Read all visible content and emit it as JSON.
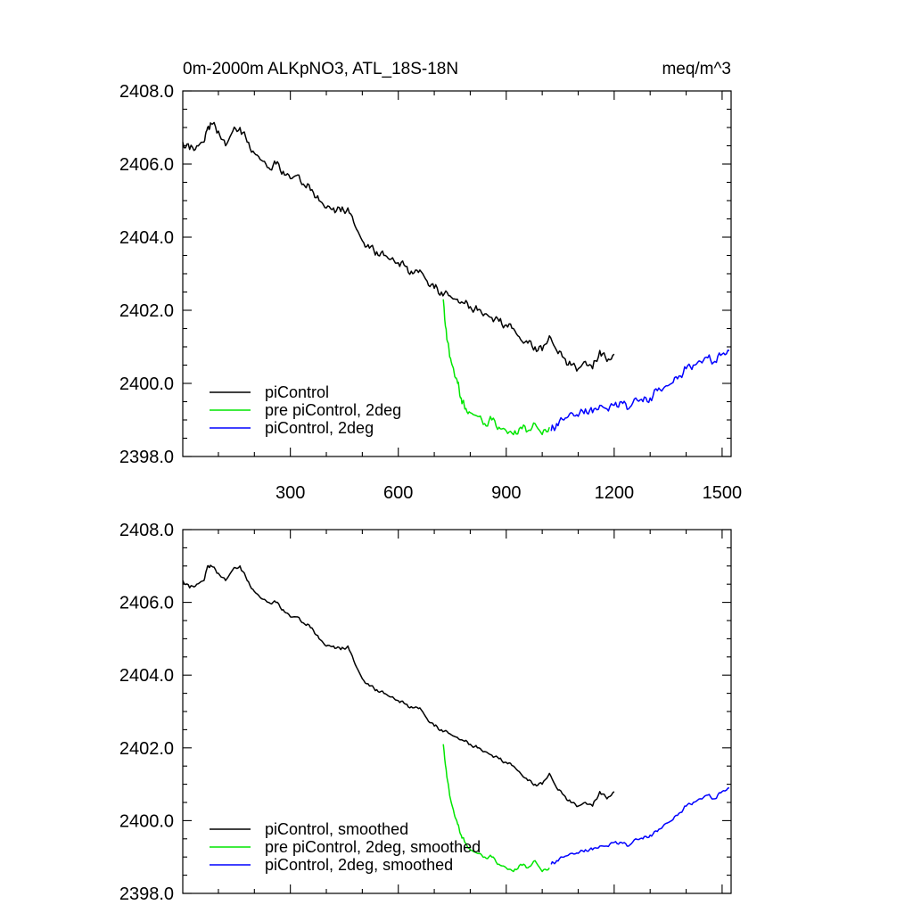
{
  "header": {
    "title": "0m-2000m ALKpNO3, ATL_18S-18N",
    "units": "meq/m^3"
  },
  "colors": {
    "piControl": "#000000",
    "pre_piControl_2deg": "#00e600",
    "piControl_2deg": "#0000ff"
  },
  "chart_data": [
    {
      "type": "line",
      "panel": "top",
      "title": "0m-2000m ALKpNO3, ATL_18S-18N",
      "units_label": "meq/m^3",
      "xlim": [
        1,
        1525
      ],
      "ylim": [
        2398.0,
        2408.0
      ],
      "x_ticks": [
        300,
        600,
        900,
        1200,
        1500
      ],
      "x_tick_labels": [
        "300",
        "600",
        "900",
        "1200",
        "1500"
      ],
      "y_ticks": [
        2398,
        2400,
        2402,
        2404,
        2406,
        2408
      ],
      "y_tick_labels": [
        "2398.0",
        "2400.0",
        "2402.0",
        "2404.0",
        "2406.0",
        "2408.0"
      ],
      "legend": "bottom-left",
      "series": [
        {
          "name": "piControl",
          "color": "#000000",
          "x": [
            1,
            20,
            40,
            60,
            70,
            80,
            100,
            120,
            140,
            160,
            180,
            200,
            220,
            240,
            260,
            280,
            300,
            320,
            340,
            360,
            380,
            400,
            420,
            440,
            460,
            480,
            500,
            520,
            540,
            560,
            580,
            600,
            620,
            640,
            660,
            680,
            700,
            720,
            740,
            760,
            780,
            800,
            820,
            840,
            860,
            880,
            900,
            920,
            940,
            960,
            980,
            1000,
            1020,
            1040,
            1060,
            1080,
            1100,
            1120,
            1140,
            1160,
            1180,
            1200
          ],
          "y": [
            2406.6,
            2406.4,
            2406.5,
            2406.6,
            2407.0,
            2407.1,
            2406.9,
            2406.5,
            2406.9,
            2407.0,
            2406.6,
            2406.3,
            2406.1,
            2405.9,
            2406.0,
            2405.8,
            2405.6,
            2405.7,
            2405.4,
            2405.3,
            2405.0,
            2404.8,
            2404.8,
            2404.7,
            2404.8,
            2404.3,
            2403.9,
            2403.7,
            2403.6,
            2403.5,
            2403.4,
            2403.3,
            2403.2,
            2403.0,
            2403.1,
            2402.8,
            2402.6,
            2402.5,
            2402.4,
            2402.3,
            2402.2,
            2402.1,
            2402.0,
            2401.9,
            2401.8,
            2401.7,
            2401.6,
            2401.5,
            2401.2,
            2401.1,
            2401.0,
            2400.9,
            2401.3,
            2400.9,
            2400.7,
            2400.5,
            2400.4,
            2400.6,
            2400.4,
            2400.9,
            2400.6,
            2400.8
          ]
        },
        {
          "name": "pre piControl, 2deg",
          "color": "#00e600",
          "x": [
            725,
            735,
            745,
            755,
            765,
            775,
            785,
            800,
            820,
            840,
            860,
            880,
            900,
            920,
            940,
            960,
            980,
            1000,
            1020
          ],
          "y": [
            2402.3,
            2401.2,
            2400.7,
            2400.3,
            2400.0,
            2399.6,
            2399.3,
            2399.2,
            2399.1,
            2398.9,
            2399.0,
            2398.8,
            2398.7,
            2398.6,
            2398.8,
            2398.7,
            2398.9,
            2398.6,
            2398.8
          ]
        },
        {
          "name": "piControl, 2deg",
          "color": "#0000ff",
          "x": [
            1025,
            1040,
            1060,
            1080,
            1100,
            1120,
            1140,
            1160,
            1180,
            1200,
            1220,
            1240,
            1260,
            1280,
            1300,
            1320,
            1340,
            1360,
            1380,
            1400,
            1420,
            1440,
            1460,
            1480,
            1500,
            1520
          ],
          "y": [
            2398.7,
            2398.9,
            2399.0,
            2399.2,
            2399.1,
            2399.3,
            2399.2,
            2399.4,
            2399.3,
            2399.4,
            2399.5,
            2399.3,
            2399.6,
            2399.5,
            2399.6,
            2399.8,
            2399.9,
            2400.0,
            2400.2,
            2400.4,
            2400.5,
            2400.6,
            2400.7,
            2400.6,
            2400.8,
            2400.9
          ]
        }
      ]
    },
    {
      "type": "line",
      "panel": "bottom",
      "xlim": [
        1,
        1525
      ],
      "ylim": [
        2398.0,
        2408.0
      ],
      "x_ticks": [
        300,
        600,
        900,
        1200,
        1500
      ],
      "y_ticks": [
        2398,
        2400,
        2402,
        2404,
        2406,
        2408
      ],
      "y_tick_labels": [
        "2398.0",
        "2400.0",
        "2402.0",
        "2404.0",
        "2406.0",
        "2408.0"
      ],
      "legend": "bottom-left",
      "series": [
        {
          "name": "piControl, smoothed",
          "color": "#000000",
          "x": [
            1,
            20,
            40,
            60,
            70,
            80,
            100,
            120,
            140,
            160,
            180,
            200,
            220,
            240,
            260,
            280,
            300,
            320,
            340,
            360,
            380,
            400,
            420,
            440,
            460,
            480,
            500,
            520,
            540,
            560,
            580,
            600,
            620,
            640,
            660,
            680,
            700,
            720,
            740,
            760,
            780,
            800,
            820,
            840,
            860,
            880,
            900,
            920,
            940,
            960,
            980,
            1000,
            1020,
            1040,
            1060,
            1080,
            1100,
            1120,
            1140,
            1160,
            1180,
            1200
          ],
          "y": [
            2406.6,
            2406.4,
            2406.5,
            2406.6,
            2407.0,
            2407.0,
            2406.8,
            2406.6,
            2406.9,
            2407.0,
            2406.6,
            2406.3,
            2406.1,
            2406.0,
            2406.0,
            2405.8,
            2405.6,
            2405.6,
            2405.4,
            2405.3,
            2405.0,
            2404.8,
            2404.8,
            2404.7,
            2404.8,
            2404.3,
            2403.9,
            2403.7,
            2403.6,
            2403.5,
            2403.4,
            2403.3,
            2403.2,
            2403.1,
            2403.1,
            2402.8,
            2402.6,
            2402.5,
            2402.4,
            2402.3,
            2402.2,
            2402.1,
            2402.0,
            2401.9,
            2401.8,
            2401.7,
            2401.6,
            2401.5,
            2401.3,
            2401.1,
            2401.0,
            2401.0,
            2401.3,
            2400.9,
            2400.7,
            2400.5,
            2400.4,
            2400.5,
            2400.4,
            2400.8,
            2400.6,
            2400.8
          ]
        },
        {
          "name": "pre piControl, 2deg, smoothed",
          "color": "#00e600",
          "x": [
            725,
            735,
            745,
            755,
            765,
            775,
            785,
            800,
            820,
            840,
            860,
            880,
            900,
            920,
            940,
            960,
            980,
            1000,
            1020
          ],
          "y": [
            2402.1,
            2401.2,
            2400.6,
            2400.2,
            2399.9,
            2399.6,
            2399.4,
            2399.2,
            2399.1,
            2399.0,
            2399.0,
            2398.8,
            2398.7,
            2398.6,
            2398.8,
            2398.7,
            2398.9,
            2398.6,
            2398.7
          ]
        },
        {
          "name": "piControl, 2deg, smoothed",
          "color": "#0000ff",
          "x": [
            1025,
            1040,
            1060,
            1080,
            1100,
            1120,
            1140,
            1160,
            1180,
            1200,
            1220,
            1240,
            1260,
            1280,
            1300,
            1320,
            1340,
            1360,
            1380,
            1400,
            1420,
            1440,
            1460,
            1480,
            1500,
            1520
          ],
          "y": [
            2398.8,
            2398.9,
            2399.0,
            2399.1,
            2399.1,
            2399.2,
            2399.2,
            2399.3,
            2399.3,
            2399.4,
            2399.4,
            2399.3,
            2399.5,
            2399.5,
            2399.6,
            2399.7,
            2399.9,
            2400.0,
            2400.2,
            2400.4,
            2400.5,
            2400.6,
            2400.7,
            2400.6,
            2400.8,
            2400.9
          ]
        }
      ]
    }
  ]
}
